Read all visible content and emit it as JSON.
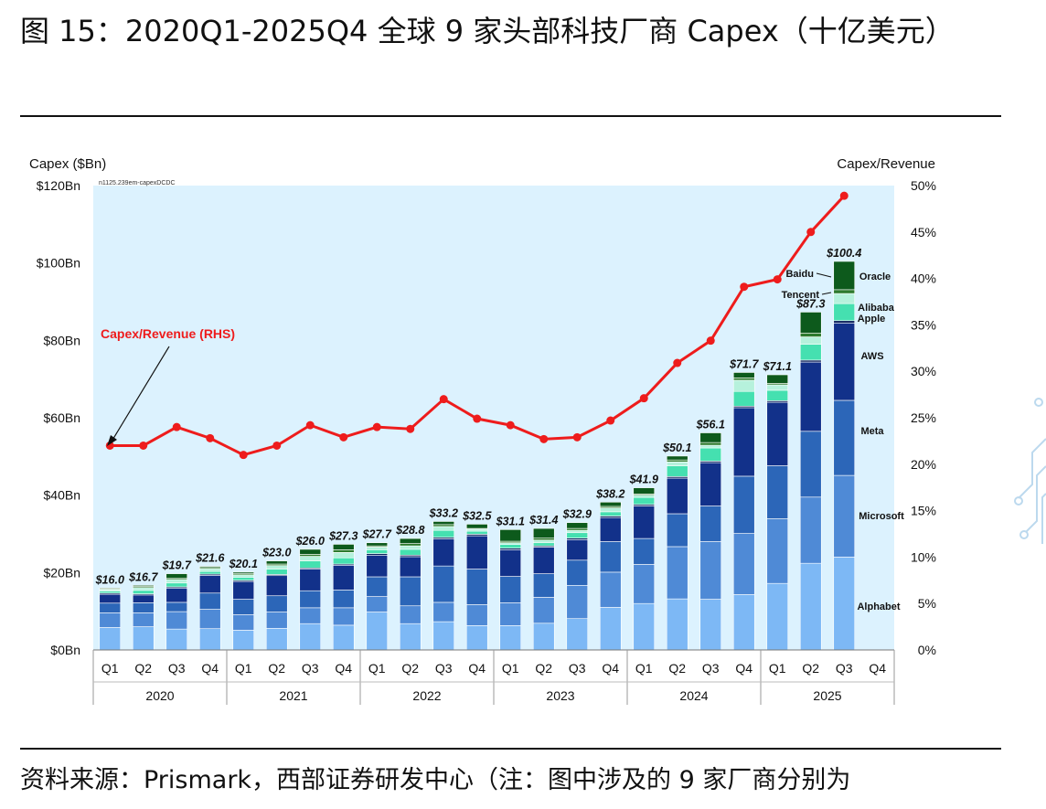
{
  "figure": {
    "title": "图 15：2020Q1-2025Q4 全球 9 家头部科技厂商 Capex（十亿美元）",
    "source": "资料来源：Prismark，西部证券研发中心（注：图中涉及的 9 家厂商分别为"
  },
  "chart_data": {
    "type": "bar",
    "stacked": true,
    "left_axis_title": "Capex ($Bn)",
    "right_axis_title": "Capex/Revenue",
    "corner_note": "n1125.239em-capexDCDC",
    "y_left_ticks": [
      "$0Bn",
      "$20Bn",
      "$40Bn",
      "$60Bn",
      "$80Bn",
      "$100Bn",
      "$120Bn"
    ],
    "y_right_ticks": [
      "0%",
      "5%",
      "10%",
      "15%",
      "20%",
      "25%",
      "30%",
      "35%",
      "40%",
      "45%",
      "50%"
    ],
    "ylim_left": [
      0,
      120
    ],
    "ylim_right": [
      0,
      50
    ],
    "quarters": [
      "Q1",
      "Q2",
      "Q3",
      "Q4",
      "Q1",
      "Q2",
      "Q3",
      "Q4",
      "Q1",
      "Q2",
      "Q3",
      "Q4",
      "Q1",
      "Q2",
      "Q3",
      "Q4",
      "Q1",
      "Q2",
      "Q3",
      "Q4",
      "Q1",
      "Q2",
      "Q3",
      "Q4"
    ],
    "years": [
      "2020",
      "2021",
      "2022",
      "2023",
      "2024",
      "2025"
    ],
    "totals": [
      16.0,
      16.7,
      19.7,
      21.6,
      20.1,
      23.0,
      26.0,
      27.3,
      27.7,
      28.8,
      33.2,
      32.5,
      31.1,
      31.4,
      32.9,
      38.2,
      41.9,
      50.1,
      56.1,
      71.7,
      71.1,
      87.3,
      100.4,
      null
    ],
    "total_labels": [
      "$16.0",
      "$16.7",
      "$19.7",
      "$21.6",
      "$20.1",
      "$23.0",
      "$26.0",
      "$27.3",
      "$27.7",
      "$28.8",
      "$33.2",
      "$32.5",
      "$31.1",
      "$31.4",
      "$32.9",
      "$38.2",
      "$41.9",
      "$50.1",
      "$56.1",
      "$71.7",
      "$71.1",
      "$87.3",
      "$100.4",
      ""
    ],
    "series": [
      {
        "name": "Alphabet",
        "color": "#7db8f5",
        "values": [
          5.8,
          6.0,
          5.4,
          5.5,
          5.1,
          5.6,
          6.8,
          6.4,
          9.8,
          6.8,
          7.3,
          6.3,
          6.3,
          6.9,
          8.1,
          11.0,
          12.0,
          13.2,
          13.1,
          14.3,
          17.2,
          22.4,
          24.0,
          null
        ]
      },
      {
        "name": "Microsoft",
        "color": "#4f8ad6",
        "values": [
          3.8,
          3.6,
          4.5,
          5.0,
          4.0,
          4.2,
          4.1,
          4.5,
          4.0,
          4.6,
          5.0,
          5.4,
          5.9,
          6.7,
          8.6,
          9.1,
          10.1,
          13.5,
          14.9,
          15.8,
          16.7,
          17.1,
          21.1,
          null
        ]
      },
      {
        "name": "Meta",
        "color": "#2c66b8",
        "values": [
          2.5,
          2.6,
          2.4,
          4.2,
          4.0,
          4.2,
          4.4,
          4.6,
          5.1,
          7.5,
          9.4,
          9.2,
          6.8,
          6.1,
          6.5,
          7.9,
          6.7,
          8.5,
          9.2,
          14.8,
          13.7,
          17.0,
          19.4,
          null
        ]
      },
      {
        "name": "AWS",
        "color": "#12318a",
        "values": [
          2.3,
          2.0,
          3.7,
          4.6,
          4.6,
          5.2,
          5.6,
          6.4,
          5.6,
          5.2,
          7.0,
          8.6,
          6.9,
          6.9,
          5.3,
          6.2,
          8.4,
          9.2,
          11.2,
          17.7,
          16.4,
          17.9,
          20.0,
          null
        ]
      },
      {
        "name": "Apple",
        "color": "#0a1e5c",
        "values": [
          0.3,
          0.3,
          0.3,
          0.3,
          0.3,
          0.3,
          0.3,
          0.3,
          0.4,
          0.4,
          0.4,
          0.4,
          0.4,
          0.3,
          0.4,
          0.4,
          0.4,
          0.4,
          0.4,
          0.4,
          0.4,
          0.5,
          0.6,
          null
        ]
      },
      {
        "name": "Alibaba",
        "color": "#45e0b0",
        "values": [
          0.5,
          0.9,
          1.0,
          0.7,
          0.8,
          1.4,
          1.8,
          1.6,
          1.0,
          1.5,
          1.8,
          0.8,
          1.0,
          0.8,
          1.4,
          1.1,
          1.8,
          2.8,
          3.4,
          3.8,
          2.7,
          4.1,
          4.4,
          null
        ]
      },
      {
        "name": "Tencent",
        "color": "#b6f1dc",
        "values": [
          0.4,
          0.7,
          0.9,
          0.7,
          0.6,
          0.9,
          1.2,
          1.4,
          0.7,
          0.9,
          1.0,
          0.5,
          0.4,
          0.7,
          0.6,
          1.0,
          0.6,
          1.0,
          0.7,
          2.9,
          1.4,
          1.9,
          2.6,
          null
        ]
      },
      {
        "name": "Baidu",
        "color": "#2d7a2d",
        "values": [
          0.2,
          0.3,
          0.3,
          0.3,
          0.3,
          0.4,
          0.5,
          0.7,
          0.3,
          0.6,
          0.5,
          0.2,
          0.4,
          0.5,
          0.5,
          0.4,
          0.3,
          0.5,
          0.7,
          0.6,
          0.4,
          1.0,
          1.0,
          null
        ]
      },
      {
        "name": "Oracle",
        "color": "#0d5a1c",
        "values": [
          0.2,
          0.3,
          1.2,
          0.3,
          0.4,
          0.8,
          1.3,
          1.4,
          0.8,
          1.3,
          0.8,
          1.1,
          3.0,
          2.5,
          1.5,
          1.1,
          1.6,
          1.0,
          2.5,
          1.4,
          2.2,
          5.4,
          7.3,
          null
        ]
      }
    ],
    "ratio_series": {
      "name": "Capex/Revenue (RHS)",
      "color": "#ee1c1c",
      "values": [
        22.0,
        22.0,
        24.0,
        22.8,
        21.0,
        22.0,
        24.2,
        22.9,
        24.0,
        23.8,
        27.0,
        24.9,
        24.2,
        22.7,
        22.9,
        24.7,
        27.1,
        30.9,
        33.3,
        39.1,
        39.9,
        45.0,
        48.9,
        null
      ]
    },
    "annotation": "Capex/Revenue (RHS)",
    "plot_background": "#dcf2fe"
  }
}
